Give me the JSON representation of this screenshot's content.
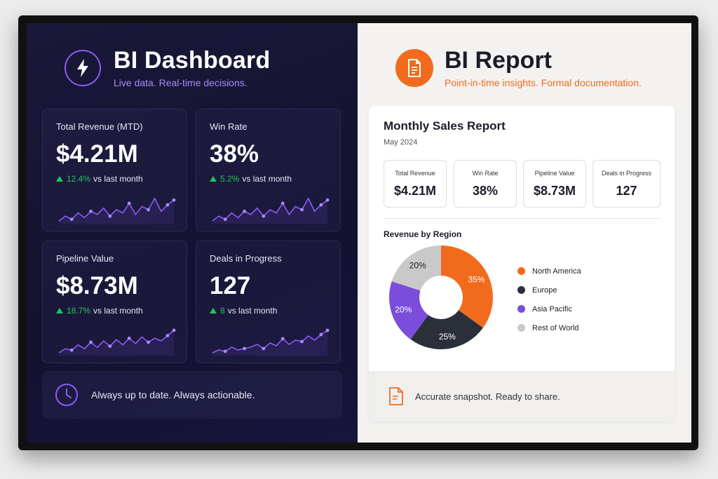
{
  "dashboard": {
    "title": "BI Dashboard",
    "subtitle": "Live data. Real-time decisions.",
    "icon": "lightning-bolt-icon",
    "accent": "#8b5cf6",
    "kpis": [
      {
        "label": "Total Revenue (MTD)",
        "value": "$4.21M",
        "change": "12.4%",
        "change_suffix": "vs last month",
        "spark": [
          2,
          5,
          3,
          7,
          4,
          8,
          6,
          10,
          5,
          9,
          7,
          13,
          6,
          11,
          9,
          16,
          8,
          12,
          15
        ]
      },
      {
        "label": "Win Rate",
        "value": "38%",
        "change": "5.2%",
        "change_suffix": "vs last month",
        "spark": [
          3,
          6,
          4,
          8,
          5,
          9,
          7,
          11,
          6,
          10,
          8,
          14,
          7,
          12,
          10,
          17,
          9,
          13,
          16
        ]
      },
      {
        "label": "Pipeline Value",
        "value": "$8.73M",
        "change": "18.7%",
        "change_suffix": "vs last month",
        "spark": [
          3,
          6,
          5,
          9,
          6,
          11,
          7,
          12,
          8,
          13,
          9,
          14,
          10,
          15,
          11,
          14,
          12,
          16,
          20
        ]
      },
      {
        "label": "Deals in Progress",
        "value": "127",
        "change": "8",
        "change_suffix": "vs last month",
        "spark": [
          2,
          4,
          3,
          6,
          4,
          5,
          6,
          8,
          5,
          9,
          7,
          12,
          8,
          11,
          10,
          14,
          11,
          15,
          18
        ]
      }
    ],
    "footer_text": "Always up to date. Always actionable.",
    "footer_icon": "clock-icon"
  },
  "report": {
    "title": "BI Report",
    "subtitle": "Point-in-time insights. Formal documentation.",
    "icon": "document-icon",
    "accent": "#f26b1d",
    "card_title": "Monthly Sales Report",
    "card_date": "May 2024",
    "metrics": [
      {
        "label": "Total Revenue",
        "value": "$4.21M"
      },
      {
        "label": "Win Rate",
        "value": "38%"
      },
      {
        "label": "Pipeline Value",
        "value": "$8.73M"
      },
      {
        "label": "Deals in Progress",
        "value": "127"
      }
    ],
    "section_title": "Revenue by Region",
    "footer_text": "Accurate snapshot. Ready to share.",
    "footer_icon": "document-icon"
  },
  "chart_data": {
    "type": "pie",
    "categories": [
      "North America",
      "Europe",
      "Asia Pacific",
      "Rest of World"
    ],
    "values": [
      35,
      25,
      20,
      20
    ],
    "labels": [
      "35%",
      "25%",
      "20%",
      "20%"
    ],
    "colors": [
      "#f26b1d",
      "#2b2f3a",
      "#7c4ddb",
      "#c9c9c9"
    ],
    "donut": true,
    "legend_position": "right"
  }
}
